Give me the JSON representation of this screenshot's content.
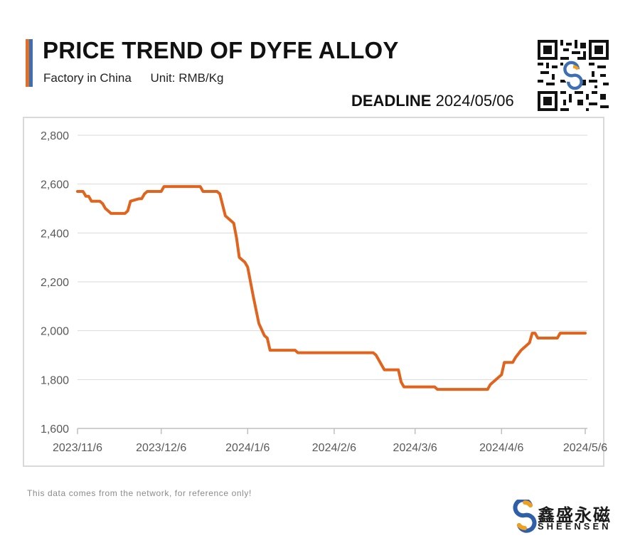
{
  "header": {
    "title": "PRICE TREND OF DYFE ALLOY",
    "subtitle_location": "Factory in China",
    "subtitle_unit": "Unit: RMB/Kg",
    "deadline_label": "DEADLINE",
    "deadline_date": "2024/05/06"
  },
  "footer": {
    "disclaimer": "This data comes from the network, for reference only!",
    "brand_cn": "鑫盛永磁",
    "brand_en": "SHEENSEN"
  },
  "colors": {
    "line": "#e0641e",
    "accent_orange": "#e07026",
    "accent_blue": "#3f6fb3",
    "grid": "#d9d9d9"
  },
  "icons": {
    "qr": "qr-code-icon",
    "logo": "sheensen-logo-icon"
  },
  "chart_data": {
    "type": "line",
    "title": "PRICE TREND OF DYFE ALLOY",
    "xlabel": "",
    "ylabel": "",
    "ylim": [
      1600,
      2800
    ],
    "yticks": [
      1600,
      1800,
      2000,
      2200,
      2400,
      2600,
      2800
    ],
    "ytick_labels": [
      "1,600",
      "1,800",
      "2,000",
      "2,200",
      "2,400",
      "2,600",
      "2,800"
    ],
    "xlim": [
      "2023-11-06",
      "2024-05-06"
    ],
    "xtick_labels": [
      "2023/11/6",
      "2023/12/6",
      "2024/1/6",
      "2024/2/6",
      "2024/3/6",
      "2024/4/6",
      "2024/5/6"
    ],
    "xtick_dates": [
      "2023-11-06",
      "2023-12-06",
      "2024-01-06",
      "2024-02-06",
      "2024-03-06",
      "2024-04-06",
      "2024-05-06"
    ],
    "grid": true,
    "legend": "none",
    "series": [
      {
        "points": [
          [
            "2023-11-06",
            2570
          ],
          [
            "2023-11-08",
            2570
          ],
          [
            "2023-11-09",
            2550
          ],
          [
            "2023-11-10",
            2550
          ],
          [
            "2023-11-11",
            2530
          ],
          [
            "2023-11-14",
            2530
          ],
          [
            "2023-11-15",
            2520
          ],
          [
            "2023-11-16",
            2500
          ],
          [
            "2023-11-17",
            2490
          ],
          [
            "2023-11-18",
            2480
          ],
          [
            "2023-11-22",
            2480
          ],
          [
            "2023-11-23",
            2480
          ],
          [
            "2023-11-24",
            2490
          ],
          [
            "2023-11-25",
            2530
          ],
          [
            "2023-11-28",
            2540
          ],
          [
            "2023-11-29",
            2540
          ],
          [
            "2023-11-30",
            2560
          ],
          [
            "2023-12-01",
            2570
          ],
          [
            "2023-12-05",
            2570
          ],
          [
            "2023-12-06",
            2570
          ],
          [
            "2023-12-07",
            2590
          ],
          [
            "2023-12-20",
            2590
          ],
          [
            "2023-12-21",
            2570
          ],
          [
            "2023-12-26",
            2570
          ],
          [
            "2023-12-27",
            2560
          ],
          [
            "2023-12-29",
            2470
          ],
          [
            "2024-01-01",
            2440
          ],
          [
            "2024-01-02",
            2380
          ],
          [
            "2024-01-03",
            2300
          ],
          [
            "2024-01-05",
            2280
          ],
          [
            "2024-01-06",
            2260
          ],
          [
            "2024-01-08",
            2140
          ],
          [
            "2024-01-10",
            2030
          ],
          [
            "2024-01-12",
            1980
          ],
          [
            "2024-01-13",
            1970
          ],
          [
            "2024-01-14",
            1920
          ],
          [
            "2024-01-23",
            1920
          ],
          [
            "2024-01-24",
            1910
          ],
          [
            "2024-02-20",
            1910
          ],
          [
            "2024-02-21",
            1900
          ],
          [
            "2024-02-22",
            1880
          ],
          [
            "2024-02-24",
            1840
          ],
          [
            "2024-02-29",
            1840
          ],
          [
            "2024-03-01",
            1790
          ],
          [
            "2024-03-02",
            1770
          ],
          [
            "2024-03-13",
            1770
          ],
          [
            "2024-03-14",
            1760
          ],
          [
            "2024-04-01",
            1760
          ],
          [
            "2024-04-02",
            1780
          ],
          [
            "2024-04-05",
            1810
          ],
          [
            "2024-04-06",
            1820
          ],
          [
            "2024-04-07",
            1870
          ],
          [
            "2024-04-10",
            1870
          ],
          [
            "2024-04-11",
            1890
          ],
          [
            "2024-04-13",
            1920
          ],
          [
            "2024-04-16",
            1950
          ],
          [
            "2024-04-17",
            1990
          ],
          [
            "2024-04-18",
            1990
          ],
          [
            "2024-04-19",
            1970
          ],
          [
            "2024-04-26",
            1970
          ],
          [
            "2024-04-27",
            1990
          ],
          [
            "2024-05-06",
            1990
          ]
        ]
      }
    ]
  }
}
